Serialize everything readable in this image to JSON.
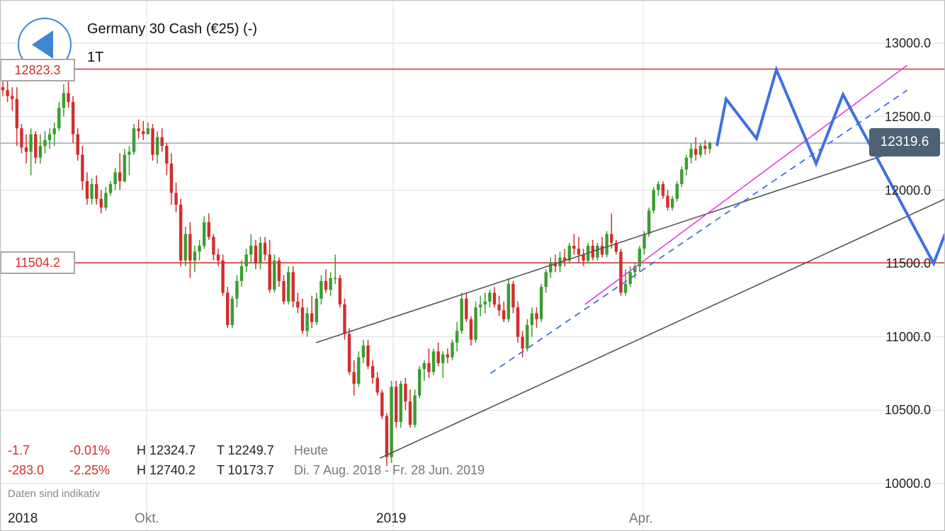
{
  "header": {
    "title": "Germany 30 Cash (€25) (-)",
    "timeframe": "1T",
    "back_icon": "back-arrow-icon"
  },
  "levels": {
    "upper_label": "12823.3",
    "lower_label": "11504.2"
  },
  "current_price": "12319.6",
  "stats": {
    "today": {
      "change": "-1.7",
      "change_pct": "-0.01%",
      "high": "H 12324.7",
      "low": "T 12249.7",
      "period": "Heute"
    },
    "range": {
      "change": "-283.0",
      "change_pct": "-2.25%",
      "high": "H 12740.2",
      "low": "T 10173.7",
      "period": "Di. 7 Aug. 2018 - Fr. 28 Jun. 2019"
    }
  },
  "disclaimer": "Daten sind indikativ",
  "colors": {
    "up": "#3a9d2e",
    "down": "#d32d2d",
    "level_line": "#cc3333",
    "forecast": "#3f6fe4",
    "trendline": "#555555",
    "magenta": "#e040e0",
    "grid": "#dedede",
    "badge": "#4e6073"
  },
  "chart_data": {
    "type": "candlestick",
    "title": "Germany 30 Cash (€25) (-)",
    "timeframe": "1T",
    "ylim": [
      9950,
      13150
    ],
    "y_ticks": [
      "13000.0",
      "12500.0",
      "12000.0",
      "11500.0",
      "11000.0",
      "10500.0",
      "10000.0"
    ],
    "x_ticks": [
      "2018",
      "Okt.",
      "2019",
      "Apr."
    ],
    "horizontal_levels": [
      12823.3,
      11504.2
    ],
    "current_price": 12319.6,
    "candles": [
      [
        12700,
        12760,
        12640,
        12680
      ],
      [
        12680,
        12740,
        12600,
        12640
      ],
      [
        12640,
        12700,
        12540,
        12620
      ],
      [
        12620,
        12700,
        12300,
        12420
      ],
      [
        12420,
        12450,
        12250,
        12290
      ],
      [
        12290,
        12380,
        12180,
        12260
      ],
      [
        12260,
        12420,
        12100,
        12380
      ],
      [
        12380,
        12400,
        12180,
        12220
      ],
      [
        12220,
        12380,
        12180,
        12300
      ],
      [
        12300,
        12400,
        12250,
        12340
      ],
      [
        12340,
        12420,
        12280,
        12380
      ],
      [
        12380,
        12460,
        12300,
        12420
      ],
      [
        12420,
        12600,
        12400,
        12560
      ],
      [
        12560,
        12720,
        12500,
        12660
      ],
      [
        12660,
        12740,
        12560,
        12600
      ],
      [
        12600,
        12640,
        12320,
        12380
      ],
      [
        12380,
        12420,
        12200,
        12240
      ],
      [
        12240,
        12300,
        12000,
        12060
      ],
      [
        12060,
        12120,
        11900,
        11940
      ],
      [
        11940,
        12080,
        11900,
        12040
      ],
      [
        12040,
        12100,
        11900,
        11940
      ],
      [
        11940,
        12000,
        11840,
        11880
      ],
      [
        11880,
        12020,
        11860,
        11980
      ],
      [
        11980,
        12060,
        11960,
        12040
      ],
      [
        12040,
        12150,
        12000,
        12120
      ],
      [
        12120,
        12250,
        12000,
        12060
      ],
      [
        12060,
        12280,
        12050,
        12240
      ],
      [
        12240,
        12300,
        12100,
        12260
      ],
      [
        12260,
        12450,
        12240,
        12420
      ],
      [
        12420,
        12480,
        12350,
        12400
      ],
      [
        12400,
        12470,
        12340,
        12380
      ],
      [
        12380,
        12460,
        12380,
        12420
      ],
      [
        12420,
        12450,
        12200,
        12240
      ],
      [
        12240,
        12400,
        12180,
        12360
      ],
      [
        12360,
        12420,
        12260,
        12300
      ],
      [
        12300,
        12320,
        12100,
        12180
      ],
      [
        12180,
        12250,
        11900,
        11980
      ],
      [
        11980,
        12050,
        11850,
        11900
      ],
      [
        11900,
        11940,
        11480,
        11520
      ],
      [
        11520,
        11750,
        11480,
        11700
      ],
      [
        11700,
        11780,
        11400,
        11520
      ],
      [
        11520,
        11620,
        11440,
        11580
      ],
      [
        11580,
        11660,
        11520,
        11620
      ],
      [
        11620,
        11820,
        11600,
        11780
      ],
      [
        11780,
        11840,
        11660,
        11680
      ],
      [
        11680,
        11700,
        11520,
        11560
      ],
      [
        11560,
        11600,
        11480,
        11520
      ],
      [
        11520,
        11560,
        11280,
        11300
      ],
      [
        11300,
        11340,
        11060,
        11080
      ],
      [
        11080,
        11280,
        11060,
        11260
      ],
      [
        11260,
        11420,
        11200,
        11380
      ],
      [
        11380,
        11520,
        11340,
        11480
      ],
      [
        11480,
        11600,
        11440,
        11560
      ],
      [
        11560,
        11700,
        11500,
        11620
      ],
      [
        11620,
        11660,
        11460,
        11500
      ],
      [
        11500,
        11680,
        11460,
        11640
      ],
      [
        11640,
        11680,
        11520,
        11560
      ],
      [
        11560,
        11660,
        11300,
        11320
      ],
      [
        11320,
        11560,
        11300,
        11520
      ],
      [
        11520,
        11540,
        11340,
        11380
      ],
      [
        11380,
        11420,
        11220,
        11240
      ],
      [
        11240,
        11480,
        11220,
        11440
      ],
      [
        11440,
        11480,
        11200,
        11240
      ],
      [
        11240,
        11300,
        11160,
        11200
      ],
      [
        11200,
        11260,
        11020,
        11040
      ],
      [
        11040,
        11200,
        11000,
        11160
      ],
      [
        11160,
        11280,
        11060,
        11100
      ],
      [
        11100,
        11300,
        11080,
        11260
      ],
      [
        11260,
        11420,
        11220,
        11380
      ],
      [
        11380,
        11460,
        11300,
        11320
      ],
      [
        11320,
        11440,
        11280,
        11400
      ],
      [
        11400,
        11560,
        11360,
        11400
      ],
      [
        11400,
        11420,
        11200,
        11220
      ],
      [
        11220,
        11260,
        10980,
        11020
      ],
      [
        11020,
        11060,
        10740,
        10760
      ],
      [
        10760,
        10840,
        10600,
        10680
      ],
      [
        10680,
        10900,
        10660,
        10860
      ],
      [
        10860,
        10980,
        10820,
        10940
      ],
      [
        10940,
        10980,
        10780,
        10800
      ],
      [
        10800,
        10840,
        10680,
        10720
      ],
      [
        10720,
        10760,
        10600,
        10620
      ],
      [
        10620,
        10640,
        10440,
        10460
      ],
      [
        10460,
        10480,
        10120,
        10180
      ],
      [
        10180,
        10700,
        10140,
        10660
      ],
      [
        10660,
        10700,
        10380,
        10420
      ],
      [
        10420,
        10700,
        10380,
        10680
      ],
      [
        10680,
        10720,
        10500,
        10560
      ],
      [
        10560,
        10640,
        10380,
        10400
      ],
      [
        10400,
        10640,
        10380,
        10600
      ],
      [
        10600,
        10800,
        10580,
        10780
      ],
      [
        10780,
        10840,
        10700,
        10820
      ],
      [
        10820,
        10920,
        10720,
        10760
      ],
      [
        10760,
        10920,
        10740,
        10900
      ],
      [
        10900,
        10960,
        10800,
        10820
      ],
      [
        10820,
        10900,
        10720,
        10880
      ],
      [
        10880,
        10920,
        10820,
        10860
      ],
      [
        10860,
        10980,
        10840,
        10960
      ],
      [
        10960,
        11100,
        10900,
        11040
      ],
      [
        11040,
        11300,
        11020,
        11260
      ],
      [
        11260,
        11300,
        11100,
        11120
      ],
      [
        11120,
        11140,
        10940,
        10980
      ],
      [
        10980,
        11240,
        10960,
        11200
      ],
      [
        11200,
        11280,
        11140,
        11220
      ],
      [
        11220,
        11300,
        11160,
        11240
      ],
      [
        11240,
        11320,
        11200,
        11300
      ],
      [
        11300,
        11340,
        11200,
        11220
      ],
      [
        11220,
        11280,
        11140,
        11180
      ],
      [
        11180,
        11240,
        11100,
        11120
      ],
      [
        11120,
        11400,
        11100,
        11360
      ],
      [
        11360,
        11380,
        11160,
        11200
      ],
      [
        11200,
        11240,
        10960,
        11000
      ],
      [
        11000,
        11040,
        10860,
        10920
      ],
      [
        10920,
        11120,
        10900,
        11080
      ],
      [
        11080,
        11200,
        11000,
        11160
      ],
      [
        11160,
        11200,
        11060,
        11120
      ],
      [
        11120,
        11360,
        11100,
        11340
      ],
      [
        11340,
        11460,
        11300,
        11440
      ],
      [
        11440,
        11540,
        11400,
        11500
      ],
      [
        11500,
        11560,
        11440,
        11480
      ],
      [
        11480,
        11580,
        11440,
        11540
      ],
      [
        11540,
        11600,
        11480,
        11520
      ],
      [
        11520,
        11640,
        11500,
        11620
      ],
      [
        11620,
        11700,
        11560,
        11600
      ],
      [
        11600,
        11680,
        11500,
        11560
      ],
      [
        11560,
        11600,
        11480,
        11520
      ],
      [
        11520,
        11640,
        11500,
        11620
      ],
      [
        11620,
        11660,
        11520,
        11540
      ],
      [
        11540,
        11640,
        11520,
        11620
      ],
      [
        11620,
        11680,
        11540,
        11560
      ],
      [
        11560,
        11720,
        11540,
        11700
      ],
      [
        11700,
        11840,
        11600,
        11640
      ],
      [
        11640,
        11660,
        11560,
        11580
      ],
      [
        11580,
        11600,
        11280,
        11300
      ],
      [
        11300,
        11460,
        11280,
        11360
      ],
      [
        11360,
        11480,
        11340,
        11440
      ],
      [
        11440,
        11500,
        11400,
        11480
      ],
      [
        11480,
        11620,
        11440,
        11600
      ],
      [
        11600,
        11720,
        11560,
        11700
      ],
      [
        11700,
        11880,
        11680,
        11860
      ],
      [
        11860,
        12020,
        11840,
        12000
      ],
      [
        12000,
        12060,
        11960,
        12040
      ],
      [
        12040,
        12060,
        11940,
        11960
      ],
      [
        11960,
        12000,
        11860,
        11880
      ],
      [
        11880,
        11960,
        11860,
        11940
      ],
      [
        11940,
        12060,
        11920,
        12040
      ],
      [
        12040,
        12160,
        12020,
        12140
      ],
      [
        12140,
        12240,
        12100,
        12220
      ],
      [
        12220,
        12320,
        12180,
        12280
      ],
      [
        12280,
        12360,
        12200,
        12240
      ],
      [
        12240,
        12320,
        12220,
        12300
      ],
      [
        12300,
        12340,
        12240,
        12280
      ],
      [
        12280,
        12330,
        12250,
        12320
      ]
    ],
    "trendlines": [
      {
        "name": "upper-channel",
        "from": [
          "2018-12-03",
          10960
        ],
        "to": [
          "2019-07-15",
          12350
        ]
      },
      {
        "name": "lower-channel",
        "from": [
          "2018-12-27",
          10173
        ],
        "to": [
          "2019-08-20",
          12220
        ]
      },
      {
        "name": "magenta-trend",
        "from": [
          "2019-03-11",
          11220
        ],
        "to": [
          "2019-07-05",
          12850
        ]
      }
    ],
    "dashed_trend": {
      "from": [
        "2019-02-05",
        10750
      ],
      "to": [
        "2019-07-05",
        12680
      ]
    },
    "forecast_path": [
      12300,
      12620,
      12350,
      12820,
      12180,
      12650,
      11500,
      11700
    ]
  }
}
